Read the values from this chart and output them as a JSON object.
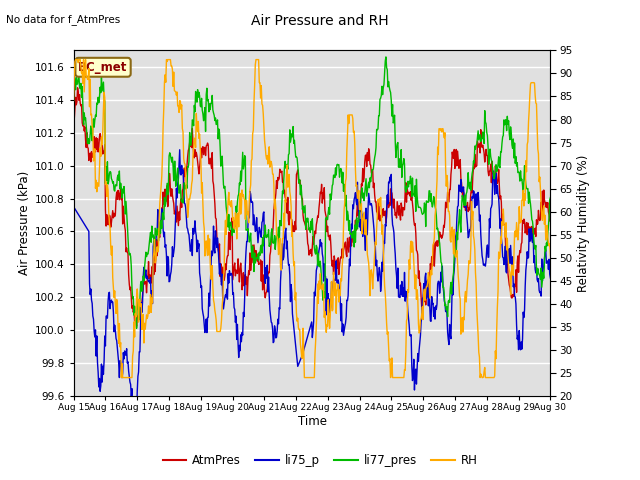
{
  "title": "Air Pressure and RH",
  "top_left_text": "No data for f_AtmPres",
  "annotation_text": "BC_met",
  "xlabel": "Time",
  "ylabel_left": "Air Pressure (kPa)",
  "ylabel_right": "Relativity Humidity (%)",
  "ylim_left": [
    99.6,
    101.7
  ],
  "ylim_right": [
    20,
    95
  ],
  "yticks_left": [
    99.6,
    99.8,
    100.0,
    100.2,
    100.4,
    100.6,
    100.8,
    101.0,
    101.2,
    101.4,
    101.6
  ],
  "yticks_right": [
    20,
    25,
    30,
    35,
    40,
    45,
    50,
    55,
    60,
    65,
    70,
    75,
    80,
    85,
    90,
    95
  ],
  "xtick_labels": [
    "Aug 15",
    "Aug 16",
    "Aug 17",
    "Aug 18",
    "Aug 19",
    "Aug 20",
    "Aug 21",
    "Aug 22",
    "Aug 23",
    "Aug 24",
    "Aug 25",
    "Aug 26",
    "Aug 27",
    "Aug 28",
    "Aug 29",
    "Aug 30"
  ],
  "colors": {
    "AtmPres": "#cc0000",
    "li75_p": "#0000cc",
    "li77_pres": "#00bb00",
    "RH": "#ffaa00"
  },
  "bg_color": "#e0e0e0",
  "fig_bg": "#ffffff",
  "linewidth": 1.0
}
